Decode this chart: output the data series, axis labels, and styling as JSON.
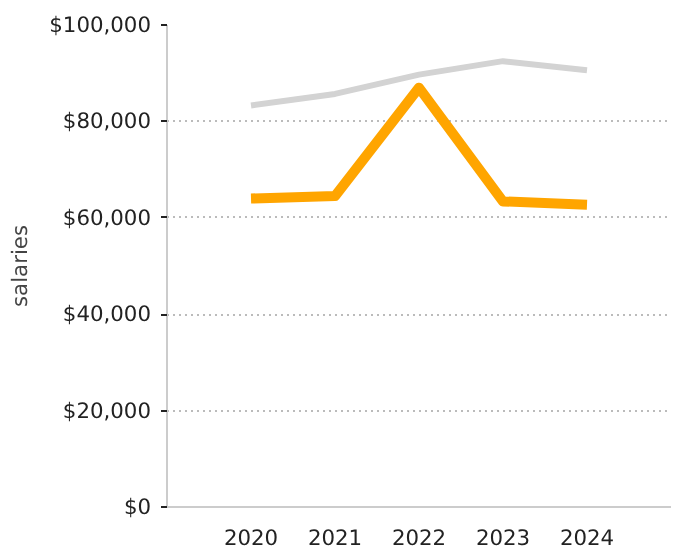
{
  "chart_data": {
    "type": "line",
    "ylabel": "salaries",
    "categories": [
      "2020",
      "2021",
      "2022",
      "2023",
      "2024"
    ],
    "series": [
      {
        "color": "#d3d3d3",
        "values": [
          83300,
          85700,
          89700,
          92500,
          90600
        ]
      },
      {
        "color": "#ffa500",
        "values": [
          64000,
          64500,
          87000,
          63400,
          62700
        ]
      }
    ],
    "ylim": [
      0,
      100000
    ],
    "yticks": [
      {
        "value": 0,
        "label": "$0"
      },
      {
        "value": 20000,
        "label": "$20,000"
      },
      {
        "value": 40000,
        "label": "$40,000"
      },
      {
        "value": 60000,
        "label": "$60,000"
      },
      {
        "value": 80000,
        "label": "$80,000"
      },
      {
        "value": 100000,
        "label": "$100,000"
      }
    ],
    "grid": "y",
    "line_style": "solid"
  }
}
